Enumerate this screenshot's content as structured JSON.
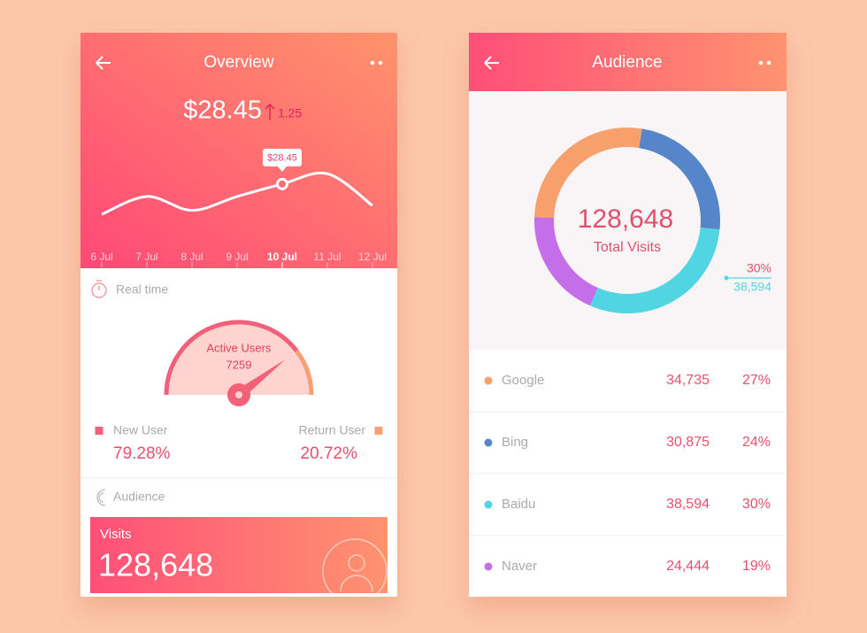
{
  "overview": {
    "title": "Overview",
    "price": "$28.45",
    "change": "1.25",
    "chart": {
      "type": "line",
      "x": [
        "6 Jul",
        "7 Jul",
        "8 Jul",
        "9 Jul",
        "10 Jul",
        "11 Jul",
        "12 Jul"
      ],
      "values": [
        26.55,
        27.67,
        26.8,
        27.67,
        28.45,
        29.1,
        27.1
      ],
      "value_labels": [
        null,
        null,
        null,
        null,
        "$28.45",
        null,
        null
      ],
      "ylim": [
        25,
        30
      ],
      "color": "#ffffff"
    }
  },
  "realtime": {
    "title": "Real time",
    "gauge": {
      "type": "gauge",
      "label": "Active Users",
      "total": "7259",
      "series": [
        {
          "name": "New User",
          "color": "#f0607a",
          "value": 79.28,
          "value_label": "79.28%"
        },
        {
          "name": "Return User",
          "color": "#f8a073",
          "value": 20.72,
          "value_label": "20.72%"
        }
      ]
    }
  },
  "audience_card": {
    "title": "Audience",
    "label": "Visits",
    "value": "128,648"
  },
  "audience": {
    "title": "Audience",
    "chart": {
      "type": "pie",
      "total": "128,648",
      "total_label": "Total Visits",
      "categories": [
        "Google",
        "Bing",
        "Baidu",
        "Naver"
      ],
      "counts": [
        "34,735",
        "30,875",
        "38,594",
        "24,444"
      ],
      "values": [
        27,
        24,
        30,
        19
      ],
      "value_labels": [
        "27%",
        "24%",
        "30%",
        "19%"
      ],
      "colors": [
        "#f7a06c",
        "#5686c9",
        "#52d5e3",
        "#c46ee9"
      ]
    }
  }
}
